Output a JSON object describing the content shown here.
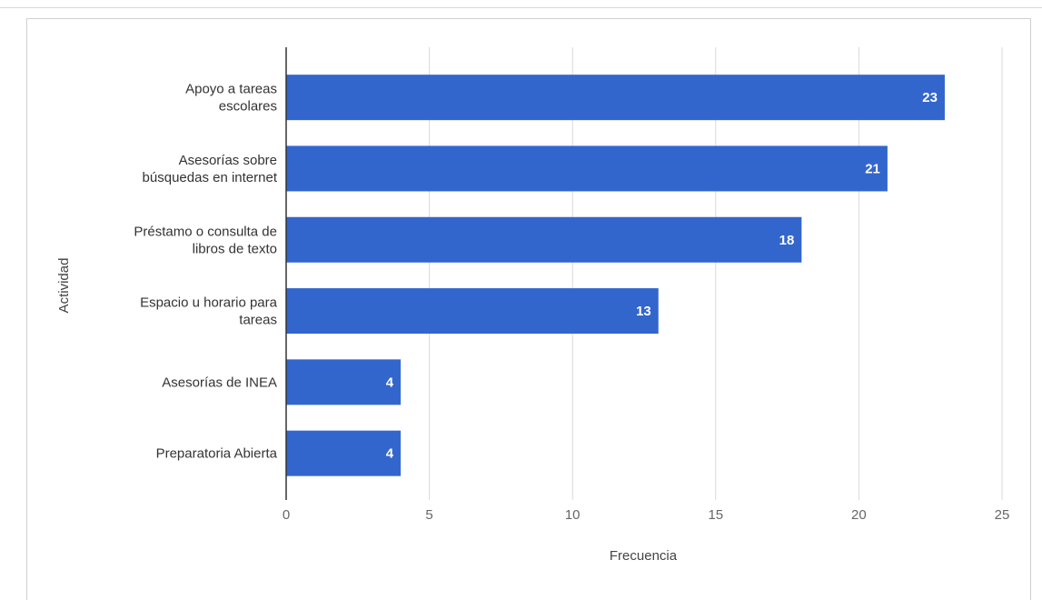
{
  "chart_data": {
    "type": "bar",
    "orientation": "horizontal",
    "categories": [
      [
        "Apoyo a tareas",
        "escolares"
      ],
      [
        "Asesorías sobre",
        "búsquedas en internet"
      ],
      [
        "Préstamo o consulta de",
        "libros de texto"
      ],
      [
        "Espacio u horario para",
        "tareas"
      ],
      [
        "Asesorías de INEA"
      ],
      [
        "Preparatoria Abierta"
      ]
    ],
    "values": [
      23,
      21,
      18,
      13,
      4,
      4
    ],
    "data_labels": [
      "23",
      "21",
      "18",
      "13",
      "4",
      "4"
    ],
    "xlabel": "Frecuencia",
    "ylabel": "Actividad",
    "xlim": [
      0,
      25
    ],
    "xticks": [
      0,
      5,
      10,
      15,
      20,
      25
    ],
    "xtick_labels": [
      "0",
      "5",
      "10",
      "15",
      "20",
      "25"
    ],
    "grid": true,
    "legend": "none",
    "bar_color": "#3366cc",
    "label_color": "#ffffff"
  }
}
